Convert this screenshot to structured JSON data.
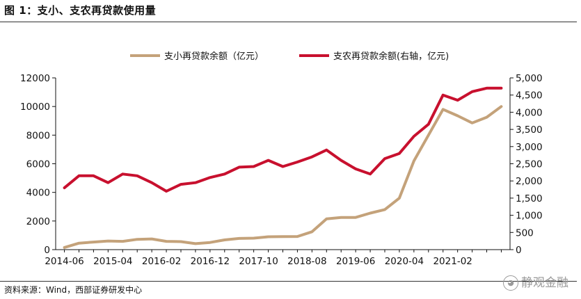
{
  "figure": {
    "title": "图 1：支小、支农再贷款使用量",
    "source": "资料来源：Wind，西部证券研发中心",
    "watermark": "静观金融",
    "watermark_icon": "wechat-icon"
  },
  "colors": {
    "series_left": "#c4a27a",
    "series_right": "#c8102e",
    "axis": "#111111"
  },
  "chart_data": {
    "type": "line",
    "x_tick_labels": [
      "2014-06",
      "2015-04",
      "2016-02",
      "2016-12",
      "2017-10",
      "2018-08",
      "2019-06",
      "2020-04",
      "2021-02"
    ],
    "x": [
      "2014-06",
      "2014-09",
      "2014-12",
      "2015-03",
      "2015-06",
      "2015-09",
      "2015-12",
      "2016-03",
      "2016-06",
      "2016-09",
      "2016-12",
      "2017-03",
      "2017-06",
      "2017-09",
      "2017-12",
      "2018-03",
      "2018-06",
      "2018-09",
      "2018-12",
      "2019-03",
      "2019-06",
      "2019-09",
      "2019-12",
      "2020-03",
      "2020-06",
      "2020-09",
      "2020-12",
      "2021-03",
      "2021-06",
      "2021-09",
      "2021-12"
    ],
    "series": [
      {
        "name": "支小再贷款余额（亿元）",
        "axis": "left",
        "values": [
          150,
          450,
          530,
          600,
          580,
          720,
          750,
          580,
          560,
          420,
          500,
          680,
          780,
          800,
          900,
          910,
          920,
          1250,
          2150,
          2250,
          2250,
          2550,
          2800,
          3600,
          6200,
          8000,
          9800,
          9350,
          8850,
          9250,
          10000
        ]
      },
      {
        "name": "支农再贷款余额(右轴，亿元)",
        "axis": "right",
        "values": [
          1800,
          2150,
          2150,
          1950,
          2200,
          2150,
          1950,
          1700,
          1900,
          1950,
          2100,
          2200,
          2400,
          2420,
          2600,
          2420,
          2550,
          2700,
          2900,
          2600,
          2350,
          2200,
          2650,
          2800,
          3300,
          3650,
          4500,
          4350,
          4600,
          4700,
          4700
        ]
      }
    ],
    "left_axis": {
      "min": 0,
      "max": 12000,
      "ticks": [
        0,
        2000,
        4000,
        6000,
        8000,
        10000,
        12000
      ]
    },
    "right_axis": {
      "min": 0,
      "max": 5000,
      "ticks": [
        "0",
        "500",
        "1,000",
        "1,500",
        "2,000",
        "2,500",
        "3,000",
        "3,500",
        "4,000",
        "4,500",
        "5,000"
      ]
    },
    "legend_position": "top-center",
    "grid": false
  }
}
